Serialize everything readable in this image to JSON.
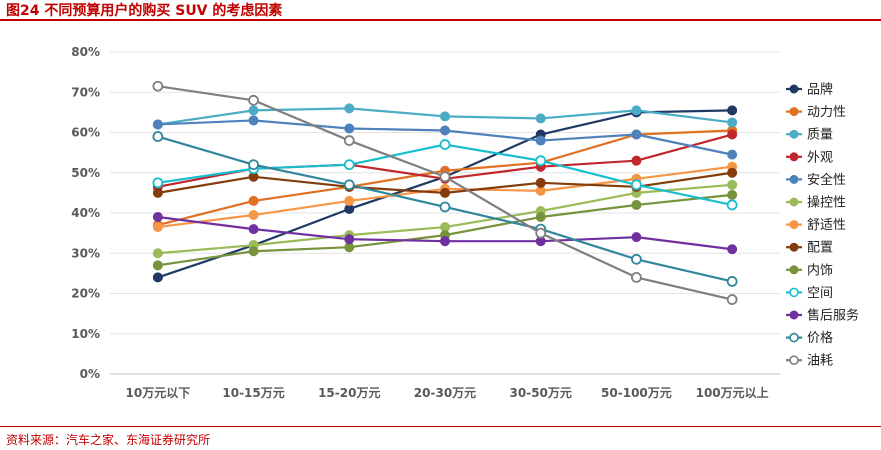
{
  "header": {
    "title": "图24 不同预算用户的购买 SUV 的考虑因素"
  },
  "footer": {
    "source": "资料来源：汽车之家、东海证券研究所"
  },
  "chart_data": {
    "type": "line",
    "title": "",
    "xlabel": "",
    "ylabel": "",
    "ylim": [
      0,
      80
    ],
    "y_ticks": [
      "0%",
      "10%",
      "20%",
      "30%",
      "40%",
      "50%",
      "60%",
      "70%",
      "80%"
    ],
    "grid": true,
    "legend_position": "right",
    "categories": [
      "10万元以下",
      "10-15万元",
      "15-20万元",
      "20-30万元",
      "30-50万元",
      "50-100万元",
      "100万元以上"
    ],
    "series": [
      {
        "name": "品牌",
        "color": "#1f3864",
        "marker": "filled",
        "values": [
          24,
          32,
          41,
          49,
          59.5,
          65,
          65.5
        ]
      },
      {
        "name": "动力性",
        "color": "#e07022",
        "marker": "filled",
        "values": [
          37,
          43,
          46.5,
          50.5,
          52.5,
          59.5,
          60.5
        ]
      },
      {
        "name": "质量",
        "color": "#4bacc6",
        "marker": "filled",
        "values": [
          62,
          65.5,
          66,
          64,
          63.5,
          65.5,
          62.5
        ]
      },
      {
        "name": "外观",
        "color": "#c0272d",
        "marker": "filled",
        "values": [
          46.5,
          51,
          52,
          48.5,
          51.5,
          53,
          59.5
        ]
      },
      {
        "name": "安全性",
        "color": "#4f81bd",
        "marker": "filled",
        "values": [
          62,
          63,
          61,
          60.5,
          58,
          59.5,
          54.5
        ]
      },
      {
        "name": "操控性",
        "color": "#9bbb59",
        "marker": "filled",
        "values": [
          30,
          32,
          34.5,
          36.5,
          40.5,
          45,
          47
        ]
      },
      {
        "name": "舒适性",
        "color": "#f79646",
        "marker": "filled",
        "values": [
          36.5,
          39.5,
          43,
          46,
          45.5,
          48.5,
          51.5
        ]
      },
      {
        "name": "配置",
        "color": "#843c0c",
        "marker": "filled",
        "values": [
          45,
          49,
          46.5,
          45,
          47.5,
          46.5,
          50
        ]
      },
      {
        "name": "内饰",
        "color": "#77933c",
        "marker": "filled",
        "values": [
          27,
          30.5,
          31.5,
          34.5,
          39,
          42,
          44.5
        ]
      },
      {
        "name": "空间",
        "color": "#17becf",
        "marker": "open",
        "values": [
          47.5,
          51,
          52,
          57,
          53,
          47,
          42
        ]
      },
      {
        "name": "售后服务",
        "color": "#7030a0",
        "marker": "filled",
        "values": [
          39,
          36,
          33.5,
          33,
          33,
          34,
          31
        ]
      },
      {
        "name": "价格",
        "color": "#31859c",
        "marker": "open",
        "values": [
          59,
          52,
          47,
          41.5,
          36,
          28.5,
          23
        ]
      },
      {
        "name": "油耗",
        "color": "#7f7f7f",
        "marker": "open",
        "values": [
          71.5,
          68,
          58,
          49,
          35,
          24,
          18.5
        ]
      }
    ]
  }
}
